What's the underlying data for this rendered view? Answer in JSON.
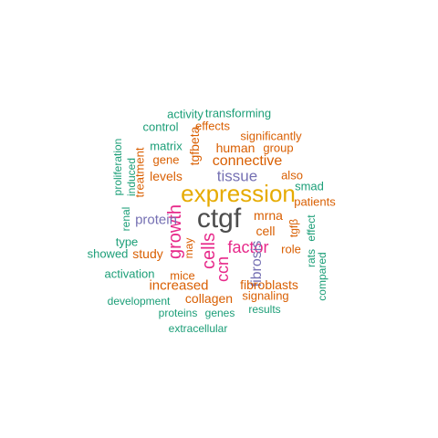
{
  "colors": {
    "teal": "#1b9e77",
    "orange": "#d95f02",
    "purple": "#7570b3",
    "magenta": "#e7298a",
    "gold": "#e6ab02",
    "gray": "#4d4d4d"
  },
  "words": [
    {
      "text": "ctgf",
      "color": "gray",
      "vertical": false
    },
    {
      "text": "expression",
      "color": "gold",
      "vertical": false
    },
    {
      "text": "growth",
      "color": "magenta",
      "vertical": true
    },
    {
      "text": "factor",
      "color": "magenta",
      "vertical": false
    },
    {
      "text": "cells",
      "color": "magenta",
      "vertical": true
    },
    {
      "text": "ccn",
      "color": "magenta",
      "vertical": true
    },
    {
      "text": "tissue",
      "color": "purple",
      "vertical": false
    },
    {
      "text": "fibrosis",
      "color": "purple",
      "vertical": true
    },
    {
      "text": "protein",
      "color": "purple",
      "vertical": false
    },
    {
      "text": "connective",
      "color": "orange",
      "vertical": false
    },
    {
      "text": "tgfbeta",
      "color": "orange",
      "vertical": true
    },
    {
      "text": "increased",
      "color": "orange",
      "vertical": false
    },
    {
      "text": "collagen",
      "color": "orange",
      "vertical": false
    },
    {
      "text": "fibroblasts",
      "color": "orange",
      "vertical": false
    },
    {
      "text": "mrna",
      "color": "orange",
      "vertical": false
    },
    {
      "text": "cell",
      "color": "orange",
      "vertical": false
    },
    {
      "text": "levels",
      "color": "orange",
      "vertical": false
    },
    {
      "text": "human",
      "color": "orange",
      "vertical": false
    },
    {
      "text": "gene",
      "color": "orange",
      "vertical": false
    },
    {
      "text": "study",
      "color": "orange",
      "vertical": false
    },
    {
      "text": "role",
      "color": "orange",
      "vertical": false
    },
    {
      "text": "patients",
      "color": "orange",
      "vertical": false
    },
    {
      "text": "also",
      "color": "orange",
      "vertical": false
    },
    {
      "text": "group",
      "color": "orange",
      "vertical": false
    },
    {
      "text": "significantly",
      "color": "orange",
      "vertical": false
    },
    {
      "text": "effects",
      "color": "orange",
      "vertical": false
    },
    {
      "text": "signaling",
      "color": "orange",
      "vertical": false
    },
    {
      "text": "treatment",
      "color": "orange",
      "vertical": true
    },
    {
      "text": "tgfβ",
      "color": "orange",
      "vertical": true
    },
    {
      "text": "mice",
      "color": "orange",
      "vertical": false
    },
    {
      "text": "may",
      "color": "orange",
      "vertical": true
    },
    {
      "text": "matrix",
      "color": "teal",
      "vertical": false
    },
    {
      "text": "smad",
      "color": "teal",
      "vertical": false
    },
    {
      "text": "transforming",
      "color": "teal",
      "vertical": false
    },
    {
      "text": "activity",
      "color": "teal",
      "vertical": false
    },
    {
      "text": "control",
      "color": "teal",
      "vertical": false
    },
    {
      "text": "proliferation",
      "color": "teal",
      "vertical": true
    },
    {
      "text": "induced",
      "color": "teal",
      "vertical": true
    },
    {
      "text": "renal",
      "color": "teal",
      "vertical": true
    },
    {
      "text": "type",
      "color": "teal",
      "vertical": false
    },
    {
      "text": "showed",
      "color": "teal",
      "vertical": false
    },
    {
      "text": "activation",
      "color": "teal",
      "vertical": false
    },
    {
      "text": "development",
      "color": "teal",
      "vertical": false
    },
    {
      "text": "proteins",
      "color": "teal",
      "vertical": false
    },
    {
      "text": "genes",
      "color": "teal",
      "vertical": false
    },
    {
      "text": "results",
      "color": "teal",
      "vertical": false
    },
    {
      "text": "extracellular",
      "color": "teal",
      "vertical": false
    },
    {
      "text": "rats",
      "color": "teal",
      "vertical": true
    },
    {
      "text": "effect",
      "color": "teal",
      "vertical": true
    },
    {
      "text": "compared",
      "color": "teal",
      "vertical": true
    }
  ]
}
